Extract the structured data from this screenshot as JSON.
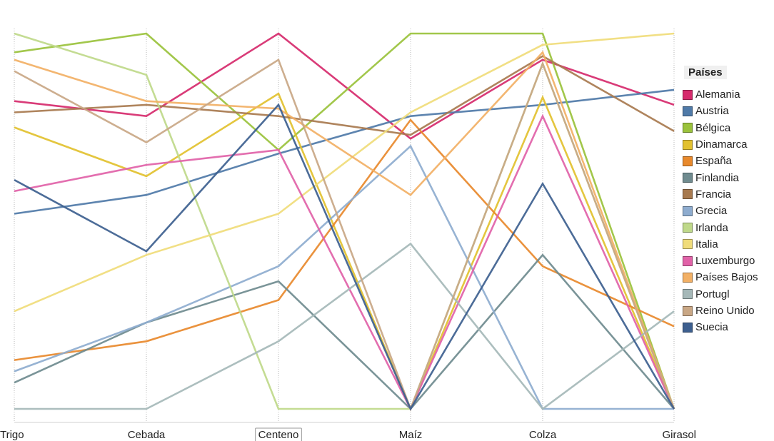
{
  "chart_data": {
    "type": "line",
    "categories": [
      "Trigo",
      "Cebada",
      "Centeno",
      "Maíz",
      "Colza",
      "Girasol"
    ],
    "ylim": [
      0,
      100
    ],
    "grid": "vertical-dotted",
    "legend_title": "Países",
    "legend_position": "right",
    "series": [
      {
        "name": "Alemania",
        "color": "#d62a6c",
        "values": [
          82,
          78,
          100,
          72,
          93,
          81
        ]
      },
      {
        "name": "Austria",
        "color": "#4f7aa8",
        "values": [
          52,
          57,
          68,
          78,
          81,
          85
        ]
      },
      {
        "name": "Bélgica",
        "color": "#9ac23c",
        "values": [
          95,
          100,
          69,
          100,
          100,
          0
        ]
      },
      {
        "name": "Dinamarca",
        "color": "#e2c12f",
        "values": [
          75,
          62,
          84,
          0,
          83,
          0
        ]
      },
      {
        "name": "España",
        "color": "#e8892c",
        "values": [
          13,
          18,
          29,
          77,
          38,
          22
        ]
      },
      {
        "name": "Finlandia",
        "color": "#6f8b8f",
        "values": [
          7,
          23,
          34,
          0,
          41,
          0
        ]
      },
      {
        "name": "Francia",
        "color": "#a87a4f",
        "values": [
          79,
          81,
          78,
          73,
          94,
          74
        ]
      },
      {
        "name": "Grecia",
        "color": "#8eaccf",
        "values": [
          10,
          23,
          38,
          70,
          0,
          0
        ]
      },
      {
        "name": "Irlanda",
        "color": "#bfd98a",
        "values": [
          100,
          89,
          0,
          0,
          92,
          0
        ]
      },
      {
        "name": "Italia",
        "color": "#f0dc7a",
        "values": [
          26,
          41,
          52,
          79,
          97,
          100
        ]
      },
      {
        "name": "Luxemburgo",
        "color": "#e162a8",
        "values": [
          58,
          65,
          69,
          0,
          78,
          0
        ]
      },
      {
        "name": "Países Bajos",
        "color": "#f2b065",
        "values": [
          93,
          82,
          80,
          57,
          95,
          0
        ]
      },
      {
        "name": "Portugl",
        "color": "#a5b8b8",
        "values": [
          0,
          0,
          18,
          44,
          0,
          26
        ]
      },
      {
        "name": "Reino Unido",
        "color": "#c9a785",
        "values": [
          90,
          71,
          93,
          0,
          92,
          0
        ]
      },
      {
        "name": "Suecia",
        "color": "#3d5f8f",
        "values": [
          61,
          42,
          81,
          0,
          60,
          0
        ]
      }
    ]
  }
}
